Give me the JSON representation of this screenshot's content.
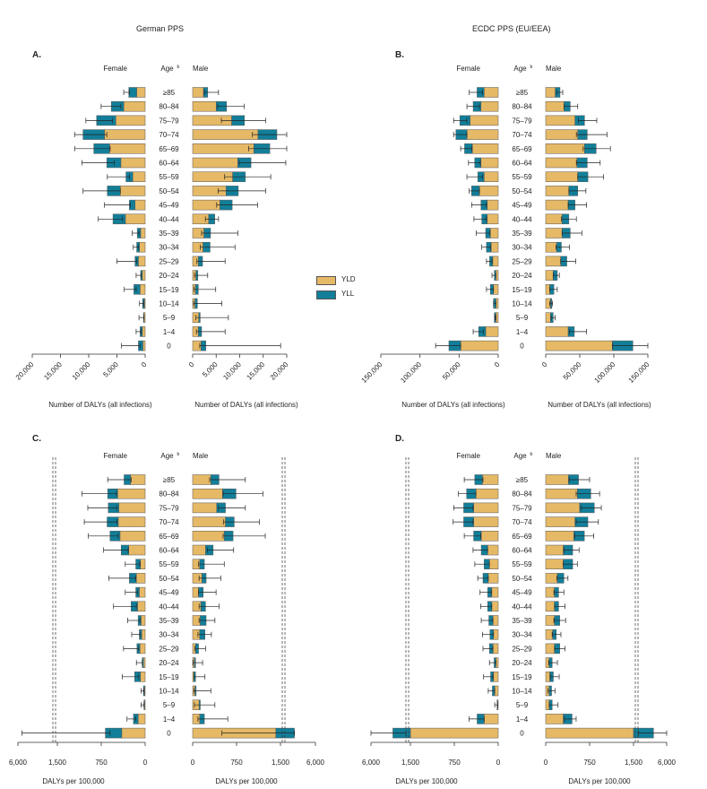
{
  "headers": {
    "left": "German PPS",
    "right": "ECDC PPS (EU/EEA)"
  },
  "legend": {
    "yld": "YLD",
    "yll": "YLL"
  },
  "colors": {
    "yld": "#e6b966",
    "yll": "#127f9a",
    "stroke": "#555555",
    "error": "#222222"
  },
  "chart_data": [
    {
      "panel": "A.",
      "type": "bar",
      "col_female": "Female",
      "col_age": "Age",
      "col_age_sup": "b",
      "col_male": "Male",
      "categories": [
        "≥85",
        "80–84",
        "75–79",
        "70–74",
        "65–69",
        "60–64",
        "55–59",
        "50–54",
        "45–49",
        "40–44",
        "35–39",
        "30–34",
        "25–29",
        "20–24",
        "15–19",
        "10–14",
        "5–9",
        "1–4",
        "0"
      ],
      "female": {
        "yld": [
          1500,
          3800,
          5200,
          7200,
          6300,
          4300,
          2200,
          4400,
          1800,
          3500,
          800,
          1000,
          1200,
          500,
          900,
          150,
          200,
          500,
          400
        ],
        "yll": [
          1400,
          2200,
          3400,
          3800,
          2800,
          2500,
          1200,
          2300,
          1000,
          2200,
          600,
          500,
          600,
          300,
          1100,
          300,
          100,
          400,
          800
        ],
        "err_low": [
          2800,
          4300,
          5800,
          6800,
          6200,
          5500,
          2800,
          4400,
          2600,
          4000,
          1100,
          1200,
          1500,
          700,
          1600,
          300,
          200,
          700,
          900
        ],
        "err_high": [
          3800,
          7800,
          10500,
          12500,
          12500,
          11200,
          6700,
          11000,
          7200,
          8300,
          2300,
          2100,
          5000,
          1600,
          3700,
          1000,
          1100,
          1600,
          4200
        ]
      },
      "male": {
        "yld": [
          2300,
          5000,
          8300,
          13900,
          13000,
          9600,
          8500,
          7100,
          5800,
          3400,
          2400,
          2200,
          1200,
          700,
          600,
          500,
          1300,
          1200,
          1800
        ],
        "yll": [
          900,
          2200,
          2700,
          4000,
          3400,
          2800,
          2700,
          2600,
          2600,
          1300,
          1400,
          1500,
          900,
          400,
          600,
          500,
          300,
          700,
          1000
        ],
        "err_low": [
          2500,
          5300,
          6100,
          12700,
          11900,
          9900,
          6800,
          5400,
          5100,
          2700,
          1900,
          1600,
          900,
          400,
          300,
          200,
          700,
          800,
          1500
        ],
        "err_high": [
          5500,
          11000,
          15500,
          26800,
          25000,
          19800,
          16600,
          15500,
          13800,
          5500,
          9600,
          9000,
          6900,
          3200,
          4900,
          6200,
          7600,
          6900,
          18700
        ]
      },
      "female_axis": {
        "max": 20000,
        "ticks": [
          "20,000",
          "15,000",
          "10,000",
          "5,000",
          "0"
        ]
      },
      "male_axis": {
        "max": 20000,
        "ticks": [
          "0",
          "5,000",
          "10,000",
          "15,000",
          "20,000"
        ]
      },
      "xlabel_female": "Number of DALYs (all infections)",
      "xlabel_male": "Number of DALYs (all infections)"
    },
    {
      "panel": "B.",
      "type": "bar",
      "col_female": "Female",
      "col_age": "Age",
      "col_age_sup": "b",
      "col_male": "Male",
      "categories": [
        "≥85",
        "80–84",
        "75–79",
        "70–74",
        "65–69",
        "60–64",
        "55–59",
        "50–54",
        "45–49",
        "40–44",
        "35–39",
        "30–34",
        "25–29",
        "20–24",
        "15–19",
        "10–14",
        "5–9",
        "1–4",
        "0"
      ],
      "female": {
        "yld": [
          18000,
          22000,
          36000,
          40000,
          33000,
          22000,
          18000,
          24000,
          14000,
          14000,
          10000,
          9000,
          7000,
          3000,
          6000,
          3000,
          3000,
          16000,
          48000
        ],
        "yll": [
          9000,
          10000,
          13000,
          14000,
          10000,
          8000,
          8000,
          10000,
          8000,
          7000,
          6000,
          6000,
          4000,
          2000,
          4000,
          3000,
          2000,
          9000,
          15000
        ],
        "err_low": [
          20000,
          24000,
          40000,
          40000,
          34000,
          23000,
          20000,
          24000,
          15000,
          15000,
          11000,
          10000,
          8000,
          3000,
          6000,
          3000,
          3000,
          19000,
          48000
        ],
        "err_high": [
          37000,
          40000,
          57000,
          57000,
          48000,
          38000,
          40000,
          37000,
          34000,
          31000,
          28000,
          21000,
          15000,
          8000,
          15000,
          6000,
          4000,
          32000,
          80000
        ]
      },
      "male": {
        "yld": [
          14000,
          27000,
          43000,
          47000,
          57000,
          46000,
          47000,
          34000,
          33000,
          24000,
          24000,
          16000,
          22000,
          11000,
          6000,
          7000,
          7000,
          33000,
          98000
        ],
        "yll": [
          7000,
          9000,
          14000,
          14000,
          17000,
          15000,
          15000,
          13000,
          10000,
          10000,
          12000,
          7000,
          9000,
          6000,
          6000,
          2000,
          4000,
          9000,
          30000
        ],
        "err_low": [
          16000,
          27000,
          48000,
          45000,
          55000,
          45000,
          47000,
          34000,
          33000,
          23000,
          24000,
          15000,
          22000,
          11000,
          6000,
          6000,
          8000,
          35000,
          98000
        ],
        "err_high": [
          25000,
          47000,
          75000,
          90000,
          95000,
          80000,
          85000,
          59000,
          60000,
          45000,
          53000,
          35000,
          44000,
          20000,
          17000,
          10000,
          14000,
          60000,
          165000
        ]
      },
      "female_axis": {
        "max": 150000,
        "ticks": [
          "150,000",
          "100,000",
          "50,000",
          "0"
        ]
      },
      "male_axis": {
        "max": 150000,
        "ticks": [
          "0",
          "50,000",
          "100,000",
          "150,000"
        ]
      },
      "xlabel_female": "Number of  DALYs (all infections)",
      "xlabel_male": "Number of DALYs (all infections)"
    },
    {
      "panel": "C.",
      "type": "bar",
      "col_female": "Female",
      "col_age": "Age",
      "col_age_sup": "b",
      "col_male": "Male",
      "categories": [
        "≥85",
        "80–84",
        "75–79",
        "70–74",
        "65–69",
        "60–64",
        "55–59",
        "50–54",
        "45–49",
        "40–44",
        "35–39",
        "30–34",
        "25–29",
        "20–24",
        "15–19",
        "10–14",
        "5–9",
        "1–4",
        "0"
      ],
      "female": {
        "yld": [
          250,
          470,
          450,
          460,
          430,
          280,
          80,
          150,
          100,
          130,
          70,
          60,
          90,
          30,
          80,
          10,
          10,
          120,
          400
        ],
        "yll": [
          110,
          170,
          180,
          190,
          170,
          130,
          80,
          120,
          60,
          110,
          50,
          40,
          50,
          20,
          100,
          20,
          10,
          80,
          280
        ],
        "err_low": [
          240,
          490,
          480,
          480,
          460,
          290,
          90,
          160,
          130,
          150,
          90,
          80,
          110,
          50,
          110,
          20,
          20,
          160,
          600
        ],
        "err_high": [
          640,
          1080,
          980,
          1040,
          970,
          710,
          340,
          620,
          340,
          540,
          300,
          230,
          370,
          150,
          390,
          70,
          70,
          310,
          5500
        ]
      },
      "male": {
        "yld": [
          310,
          510,
          410,
          560,
          540,
          220,
          120,
          160,
          100,
          140,
          130,
          120,
          50,
          30,
          20,
          40,
          110,
          120,
          1420
        ],
        "yll": [
          140,
          230,
          150,
          150,
          150,
          130,
          80,
          70,
          80,
          80,
          100,
          90,
          50,
          20,
          30,
          20,
          20,
          80,
          1560
        ],
        "err_low": [
          290,
          520,
          440,
          530,
          520,
          250,
          100,
          110,
          100,
          110,
          110,
          90,
          40,
          10,
          20,
          20,
          30,
          90,
          500
        ],
        "err_high": [
          900,
          1200,
          900,
          1140,
          1240,
          700,
          540,
          480,
          400,
          450,
          380,
          320,
          220,
          170,
          210,
          310,
          380,
          600,
          3000
        ]
      },
      "female_axis": {
        "ticks": [
          "6,000",
          "1,500",
          "750",
          "0"
        ]
      },
      "male_axis": {
        "ticks": [
          "0",
          "750",
          "1,500",
          "6,000"
        ]
      },
      "xlabel_female": "DALYs per 100,000",
      "xlabel_male": "DALYs per 100,000"
    },
    {
      "panel": "D.",
      "type": "bar",
      "col_female": "Female",
      "col_age": "Age",
      "col_age_sup": "b",
      "col_male": "Male",
      "categories": [
        "≥85",
        "80–84",
        "75–79",
        "70–74",
        "65–69",
        "60–64",
        "55–59",
        "50–54",
        "45–49",
        "40–44",
        "35–39",
        "30–34",
        "25–29",
        "20–24",
        "15–19",
        "10–14",
        "5–9",
        "1–4",
        "0"
      ],
      "female": {
        "yld": [
          270,
          380,
          420,
          420,
          290,
          180,
          150,
          170,
          110,
          110,
          90,
          80,
          90,
          40,
          80,
          60,
          10,
          240,
          1500
        ],
        "yll": [
          130,
          160,
          170,
          170,
          130,
          110,
          90,
          90,
          70,
          70,
          70,
          60,
          60,
          30,
          50,
          40,
          10,
          120,
          1750
        ],
        "err_low": [
          260,
          380,
          430,
          430,
          300,
          180,
          150,
          170,
          120,
          110,
          90,
          80,
          90,
          40,
          90,
          60,
          10,
          240,
          1600
        ],
        "err_high": [
          580,
          680,
          760,
          770,
          580,
          430,
          400,
          350,
          310,
          300,
          290,
          270,
          260,
          150,
          250,
          170,
          60,
          500,
          6000
        ]
      },
      "male": {
        "yld": [
          390,
          540,
          580,
          500,
          480,
          300,
          300,
          200,
          150,
          150,
          150,
          120,
          150,
          60,
          70,
          60,
          60,
          300,
          1500
        ],
        "yll": [
          170,
          230,
          250,
          220,
          180,
          160,
          160,
          110,
          70,
          70,
          90,
          60,
          90,
          50,
          60,
          40,
          50,
          150,
          2500
        ],
        "err_low": [
          400,
          520,
          600,
          520,
          500,
          310,
          300,
          190,
          140,
          150,
          140,
          110,
          150,
          50,
          80,
          40,
          60,
          320,
          1700
        ],
        "err_high": [
          750,
          920,
          950,
          900,
          820,
          570,
          540,
          380,
          310,
          330,
          340,
          260,
          330,
          200,
          230,
          160,
          210,
          520,
          6000
        ]
      },
      "female_axis": {
        "ticks": [
          "6,000",
          "1,500",
          "750",
          "0"
        ]
      },
      "male_axis": {
        "ticks": [
          "0",
          "750",
          "1,500",
          "6,000"
        ]
      },
      "xlabel_female": "DALYs per 100,000",
      "xlabel_male": "DALYs per 100,000"
    }
  ]
}
